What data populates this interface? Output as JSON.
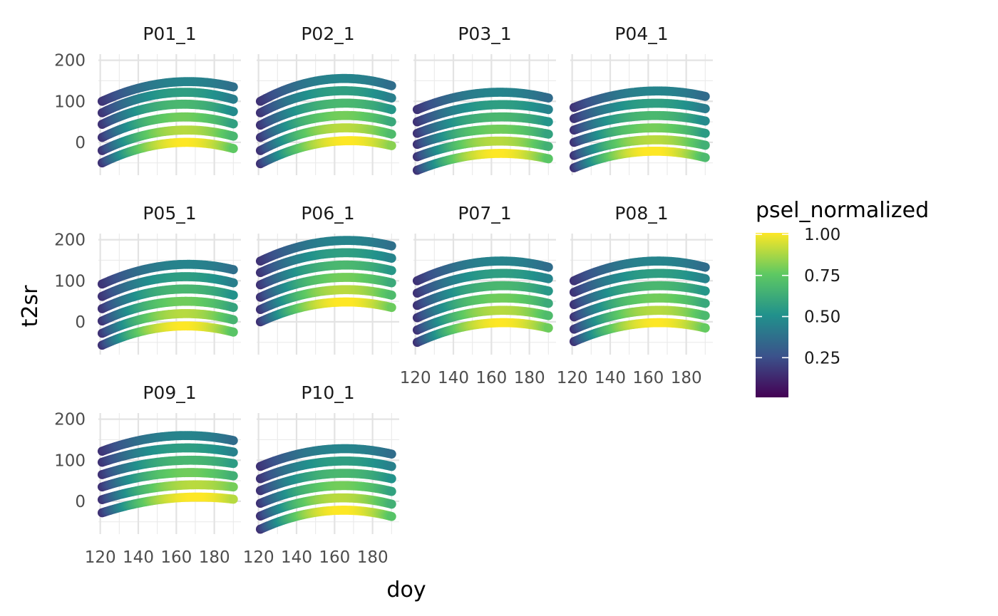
{
  "chart_data": {
    "type": "scatter",
    "facet_type": "facet_wrap",
    "xlabel": "doy",
    "ylabel": "t2sr",
    "x_ticks": [
      120,
      140,
      160,
      180
    ],
    "y_ticks": [
      0,
      100,
      200
    ],
    "xlim": [
      119,
      194
    ],
    "ylim": [
      -80,
      215
    ],
    "grid": true,
    "x_range": [
      121,
      190
    ],
    "color_scale": {
      "name": "psel_normalized",
      "palette": "viridis",
      "ticks": [
        1.0,
        0.75,
        0.5,
        0.25
      ],
      "tick_labels": [
        "1.00",
        "0.75",
        "0.50",
        "0.25"
      ],
      "stops": [
        "#440154",
        "#3b528b",
        "#21918c",
        "#5ec962",
        "#fde725"
      ]
    },
    "panels": [
      {
        "label": "P01_1",
        "series_start_t2sr": [
          -50,
          -20,
          12,
          44,
          72,
          100
        ],
        "series_end_t2sr": [
          -15,
          15,
          45,
          75,
          105,
          135
        ],
        "peak_t2sr": [
          0,
          30,
          62,
          93,
          122,
          148
        ],
        "peak_doy": 165
      },
      {
        "label": "P02_1",
        "series_start_t2sr": [
          -52,
          -20,
          12,
          42,
          72,
          100
        ],
        "series_end_t2sr": [
          -8,
          20,
          50,
          80,
          108,
          138
        ],
        "peak_t2sr": [
          4,
          35,
          65,
          95,
          125,
          155
        ],
        "peak_doy": 170
      },
      {
        "label": "P03_1",
        "series_start_t2sr": [
          -68,
          -35,
          -5,
          22,
          50,
          80
        ],
        "series_end_t2sr": [
          -40,
          -10,
          20,
          50,
          80,
          108
        ],
        "peak_t2sr": [
          -27,
          3,
          32,
          62,
          92,
          122
        ],
        "peak_doy": 167
      },
      {
        "label": "P04_1",
        "series_start_t2sr": [
          -62,
          -32,
          0,
          30,
          58,
          85
        ],
        "series_end_t2sr": [
          -37,
          -7,
          22,
          52,
          82,
          112
        ],
        "peak_t2sr": [
          -22,
          6,
          35,
          65,
          95,
          125
        ],
        "peak_doy": 168
      },
      {
        "label": "P05_1",
        "series_start_t2sr": [
          -57,
          -28,
          2,
          32,
          62,
          92
        ],
        "series_end_t2sr": [
          -25,
          5,
          35,
          65,
          95,
          127
        ],
        "peak_t2sr": [
          -10,
          20,
          50,
          80,
          110,
          140
        ],
        "peak_doy": 165
      },
      {
        "label": "P06_1",
        "series_start_t2sr": [
          0,
          30,
          60,
          90,
          120,
          148
        ],
        "series_end_t2sr": [
          35,
          65,
          95,
          125,
          155,
          185
        ],
        "peak_t2sr": [
          48,
          78,
          108,
          138,
          168,
          198
        ],
        "peak_doy": 170
      },
      {
        "label": "P07_1",
        "series_start_t2sr": [
          -50,
          -20,
          10,
          40,
          70,
          100
        ],
        "series_end_t2sr": [
          -15,
          15,
          45,
          75,
          105,
          133
        ],
        "peak_t2sr": [
          -2,
          28,
          58,
          88,
          118,
          148
        ],
        "peak_doy": 167
      },
      {
        "label": "P08_1",
        "series_start_t2sr": [
          -48,
          -18,
          12,
          42,
          72,
          100
        ],
        "series_end_t2sr": [
          -15,
          15,
          45,
          75,
          105,
          133
        ],
        "peak_t2sr": [
          -2,
          28,
          58,
          88,
          118,
          148
        ],
        "peak_doy": 167
      },
      {
        "label": "P09_1",
        "series_start_t2sr": [
          -28,
          4,
          35,
          65,
          95,
          122
        ],
        "series_end_t2sr": [
          5,
          35,
          62,
          92,
          120,
          148
        ],
        "peak_t2sr": [
          10,
          40,
          70,
          100,
          130,
          160
        ],
        "peak_doy": 168
      },
      {
        "label": "P10_1",
        "series_start_t2sr": [
          -68,
          -36,
          -5,
          26,
          55,
          85
        ],
        "series_end_t2sr": [
          -37,
          -7,
          24,
          55,
          85,
          115
        ],
        "peak_t2sr": [
          -22,
          8,
          38,
          68,
          98,
          128
        ],
        "peak_doy": 168
      }
    ]
  }
}
